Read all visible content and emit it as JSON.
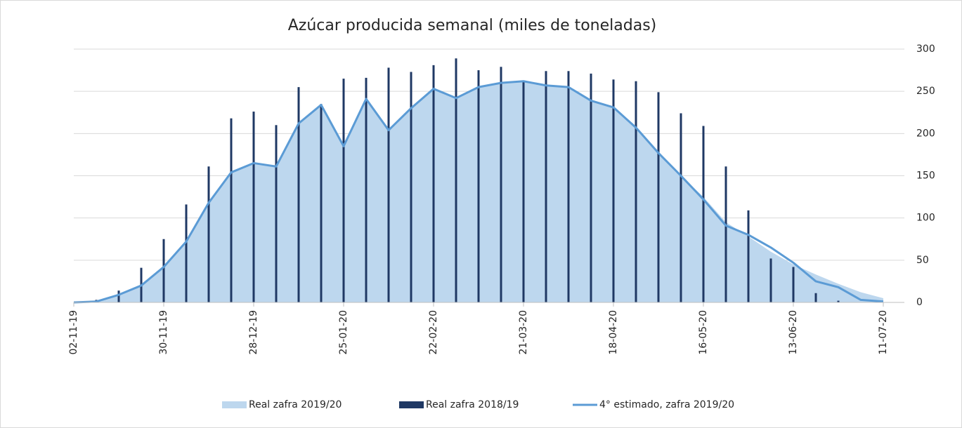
{
  "chart_data": {
    "type": "combo",
    "title": "Azúcar producida semanal (miles de toneladas)",
    "categories": [
      "02-11-19",
      null,
      null,
      null,
      "30-11-19",
      null,
      null,
      null,
      "28-12-19",
      null,
      null,
      null,
      "25-01-20",
      null,
      null,
      null,
      "22-02-20",
      null,
      null,
      null,
      "21-03-20",
      null,
      null,
      null,
      "18-04-20",
      null,
      null,
      null,
      "16-05-20",
      null,
      null,
      null,
      "13-06-20",
      null,
      null,
      null,
      "11-07-20"
    ],
    "series": [
      {
        "name": "Real zafra 2019/20",
        "type": "area",
        "color": "#bdd7ee",
        "values": [
          0,
          1,
          9,
          20,
          42,
          72,
          118,
          154,
          165,
          161,
          212,
          234,
          185,
          241,
          204,
          230,
          253,
          242,
          255,
          260,
          262,
          257,
          255,
          239,
          231,
          207,
          177,
          150,
          125,
          95,
          78,
          60,
          45,
          33,
          22,
          12,
          5
        ]
      },
      {
        "name": "Real zafra 2018/19",
        "type": "bar",
        "color": "#1f3864",
        "values": [
          0,
          3,
          14,
          41,
          75,
          116,
          161,
          218,
          226,
          210,
          255,
          235,
          265,
          266,
          278,
          273,
          281,
          289,
          275,
          279,
          262,
          274,
          274,
          271,
          264,
          262,
          249,
          224,
          209,
          161,
          109,
          52,
          42,
          11,
          2,
          0,
          0
        ]
      },
      {
        "name": "4° estimado, zafra 2019/20",
        "type": "line",
        "color": "#5b9bd5",
        "values": [
          0,
          1,
          9,
          20,
          42,
          72,
          118,
          154,
          165,
          161,
          212,
          234,
          185,
          241,
          204,
          230,
          253,
          242,
          255,
          260,
          262,
          257,
          255,
          239,
          231,
          207,
          177,
          150,
          122,
          91,
          80,
          65,
          47,
          25,
          18,
          3,
          1
        ]
      }
    ],
    "ylim": [
      0,
      300
    ],
    "yticks": [
      0,
      50,
      100,
      150,
      200,
      250,
      300
    ],
    "grid": true,
    "legend": "bottom"
  }
}
